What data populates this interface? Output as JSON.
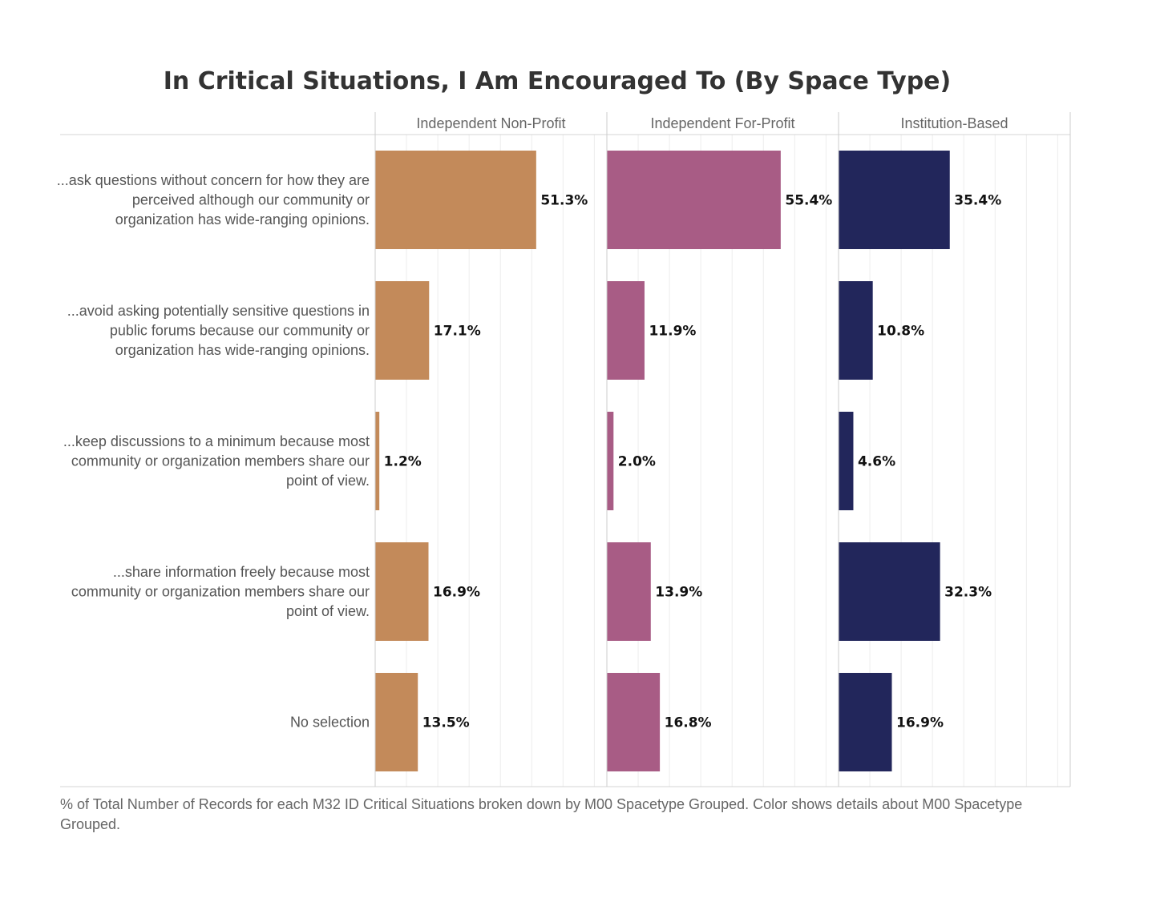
{
  "chart_data": {
    "type": "bar",
    "orientation": "horizontal",
    "title": "In Critical Situations, I Am Encouraged To (By Space Type)",
    "categories": [
      "...ask questions without concern for how they are perceived although our community or organization has wide-ranging opinions.",
      "...avoid asking potentially sensitive questions in public forums because our community or organization has wide-ranging opinions.",
      "...keep discussions to a minimum because most community or organization members share our point of view.",
      "...share information freely because most community or organization members share our point of view.",
      "No selection"
    ],
    "category_lines": [
      [
        "...ask questions without concern for how they are",
        "perceived although our community or",
        "organization has wide-ranging opinions."
      ],
      [
        "...avoid asking potentially sensitive questions in",
        "public forums because our community or",
        "organization has wide-ranging opinions."
      ],
      [
        "...keep discussions to a minimum because most",
        "community or organization members share our",
        "point of view."
      ],
      [
        "...share information freely because most",
        "community or organization members share our",
        "point of view."
      ],
      [
        "No selection"
      ]
    ],
    "series": [
      {
        "name": "Independent Non-Profit",
        "color": "#C38A5A",
        "values": [
          51.3,
          17.1,
          1.2,
          16.9,
          13.5
        ],
        "labels": [
          "51.3%",
          "17.1%",
          "1.2%",
          "16.9%",
          "13.5%"
        ]
      },
      {
        "name": "Independent For-Profit",
        "color": "#A85C85",
        "values": [
          55.4,
          11.9,
          2.0,
          13.9,
          16.8
        ],
        "labels": [
          "55.4%",
          "11.9%",
          "2.0%",
          "13.9%",
          "16.8%"
        ]
      },
      {
        "name": "Institution-Based",
        "color": "#22265B",
        "values": [
          35.4,
          10.8,
          4.6,
          32.3,
          16.9
        ],
        "labels": [
          "35.4%",
          "10.8%",
          "4.6%",
          "32.3%",
          "16.9%"
        ]
      }
    ],
    "xlim": [
      0,
      74
    ],
    "grid": true,
    "legend": "none"
  },
  "footnote": "% of Total Number of Records for each M32 ID Critical Situations broken down by M00 Spacetype Grouped.  Color shows details about M00 Spacetype Grouped."
}
